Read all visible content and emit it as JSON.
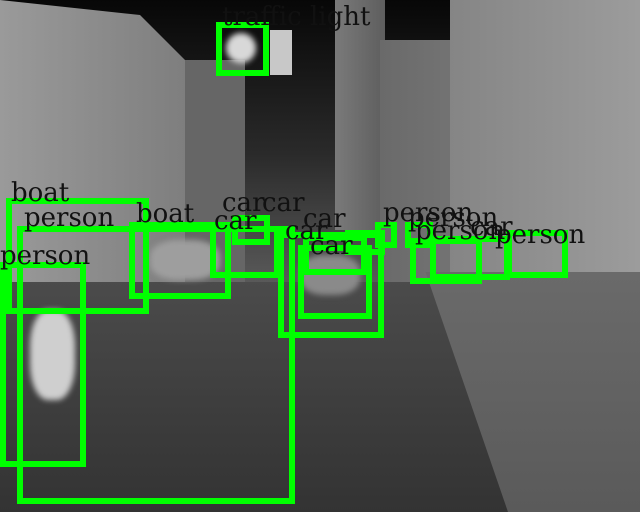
{
  "colors": {
    "box": "#00ff00",
    "label_text": "#111111"
  },
  "detections": [
    {
      "label": "traffic light"
    },
    {
      "label": "boat"
    },
    {
      "label": "person"
    },
    {
      "label": "person"
    },
    {
      "label": "boat"
    },
    {
      "label": "car"
    },
    {
      "label": "car"
    },
    {
      "label": "car"
    },
    {
      "label": "car"
    },
    {
      "label": "car"
    },
    {
      "label": "car"
    },
    {
      "label": "person"
    },
    {
      "label": "person"
    },
    {
      "label": "person"
    },
    {
      "label": "car"
    },
    {
      "label": "person"
    }
  ]
}
